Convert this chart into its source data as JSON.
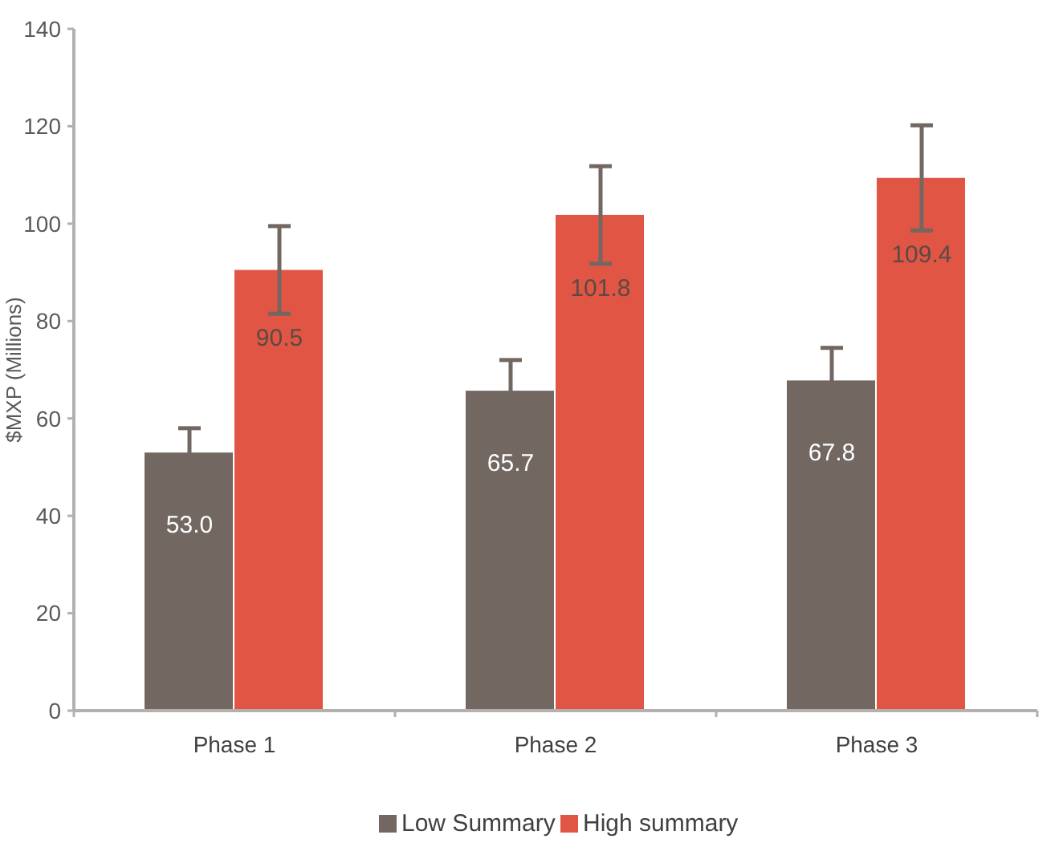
{
  "chart_data": {
    "type": "bar",
    "ylabel": "$MXP (Millions)",
    "categories": [
      "Phase 1",
      "Phase 2",
      "Phase 3"
    ],
    "series": [
      {
        "name": "Low Summary",
        "color": "#736762",
        "values": [
          53.0,
          65.7,
          67.8
        ],
        "value_labels": [
          "53.0",
          "65.7",
          "67.8"
        ],
        "errors": [
          5,
          6.3,
          6.7
        ]
      },
      {
        "name": "High summary",
        "color": "#e05543",
        "values": [
          90.5,
          101.8,
          109.4
        ],
        "value_labels": [
          "90.5",
          "101.8",
          "109.4"
        ],
        "errors": [
          9,
          10,
          10.8
        ]
      }
    ],
    "ylim": [
      0,
      140
    ],
    "yticks": [
      0,
      20,
      40,
      60,
      80,
      100,
      120,
      140
    ],
    "legend": "bottom",
    "grid": false
  }
}
